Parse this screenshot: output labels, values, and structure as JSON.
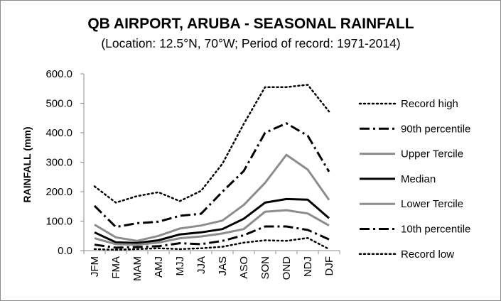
{
  "chart_data": {
    "type": "line",
    "title": "QB AIRPORT, ARUBA - SEASONAL RAINFALL",
    "subtitle": "(Location: 12.5°N, 70°W; Period of record: 1971-2014)",
    "xlabel": "",
    "ylabel": "RAINFALL (mm)",
    "ylim": [
      0,
      600
    ],
    "yticks": [
      "0.0",
      "100.0",
      "200.0",
      "300.0",
      "400.0",
      "500.0",
      "600.0"
    ],
    "grid": false,
    "legend_position": "right",
    "categories": [
      "JFM",
      "FMA",
      "MAM",
      "AMJ",
      "MJJ",
      "JJA",
      "JAS",
      "ASO",
      "SON",
      "OND",
      "NDJ",
      "DJF"
    ],
    "series": [
      {
        "name": "Record high",
        "color": "#000000",
        "style": "dotted",
        "values": [
          218,
          163,
          185,
          198,
          168,
          203,
          295,
          430,
          555,
          555,
          563,
          472
        ]
      },
      {
        "name": "90th percentile",
        "color": "#000000",
        "style": "dashdot",
        "values": [
          152,
          80,
          93,
          98,
          118,
          125,
          200,
          270,
          400,
          432,
          390,
          268
        ]
      },
      {
        "name": "Upper Tercile",
        "color": "#8c8c8c",
        "style": "solid",
        "values": [
          88,
          45,
          33,
          50,
          75,
          85,
          102,
          155,
          230,
          325,
          275,
          172
        ]
      },
      {
        "name": "Median",
        "color": "#000000",
        "style": "solid",
        "values": [
          62,
          28,
          26,
          35,
          55,
          62,
          73,
          108,
          163,
          175,
          173,
          110
        ]
      },
      {
        "name": "Lower Tercile",
        "color": "#8c8c8c",
        "style": "solid",
        "values": [
          42,
          22,
          20,
          27,
          42,
          48,
          58,
          73,
          132,
          137,
          126,
          85
        ]
      },
      {
        "name": "10th percentile",
        "color": "#000000",
        "style": "dashdot",
        "values": [
          20,
          10,
          12,
          15,
          25,
          22,
          33,
          52,
          82,
          82,
          70,
          38
        ]
      },
      {
        "name": "Record low",
        "color": "#000000",
        "style": "dotted",
        "values": [
          5,
          3,
          5,
          8,
          5,
          8,
          13,
          27,
          35,
          33,
          43,
          5
        ]
      }
    ]
  }
}
